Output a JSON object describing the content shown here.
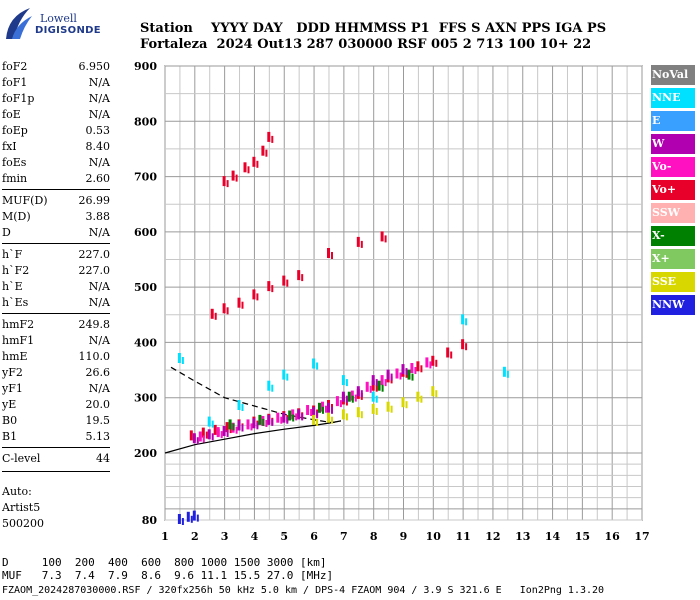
{
  "logo": {
    "line1": "Lowell",
    "line2": "DIGISONDE"
  },
  "header": {
    "row1": "Station    YYYY DAY   DDD HHMMSS P1  FFS S AXN PPS IGA PS",
    "row2": "Fortaleza  2024 Out13 287 030000 RSF 005 2 713 100 10+ 22"
  },
  "params": [
    {
      "k": "foF2",
      "v": "6.950"
    },
    {
      "k": "foF1",
      "v": "N/A"
    },
    {
      "k": "foF1p",
      "v": "N/A"
    },
    {
      "k": "foE",
      "v": "N/A"
    },
    {
      "k": "foEp",
      "v": "0.53"
    },
    {
      "k": "fxI",
      "v": "8.40"
    },
    {
      "k": "foEs",
      "v": "N/A"
    },
    {
      "k": "fmin",
      "v": "2.60"
    },
    {
      "k": "MUF(D)",
      "v": "26.99"
    },
    {
      "k": "M(D)",
      "v": "3.88"
    },
    {
      "k": "D",
      "v": "N/A"
    },
    {
      "k": "h`F",
      "v": "227.0"
    },
    {
      "k": "h`F2",
      "v": "227.0"
    },
    {
      "k": "h`E",
      "v": "N/A"
    },
    {
      "k": "h`Es",
      "v": "N/A"
    },
    {
      "k": "hmF2",
      "v": "249.8"
    },
    {
      "k": "hmF1",
      "v": "N/A"
    },
    {
      "k": "hmE",
      "v": "110.0"
    },
    {
      "k": "yF2",
      "v": "26.6"
    },
    {
      "k": "yF1",
      "v": "N/A"
    },
    {
      "k": "yE",
      "v": "20.0"
    },
    {
      "k": "B0",
      "v": "19.5"
    },
    {
      "k": "B1",
      "v": "5.13"
    },
    {
      "k": "C-level",
      "v": "44"
    }
  ],
  "auto": {
    "l1": "Auto:",
    "l2": "Artist5",
    "l3": "500200"
  },
  "legend": [
    {
      "label": "NoVal",
      "color": "#808080"
    },
    {
      "label": "NNE",
      "color": "#00e0ff"
    },
    {
      "label": "E",
      "color": "#3aa0ff"
    },
    {
      "label": "W",
      "color": "#b000b0"
    },
    {
      "label": "Vo-",
      "color": "#ff10c0"
    },
    {
      "label": "Vo+",
      "color": "#e8002a"
    },
    {
      "label": "SSW",
      "color": "#ffb0b0"
    },
    {
      "label": "X-",
      "color": "#008000"
    },
    {
      "label": "X+",
      "color": "#80c860"
    },
    {
      "label": "SSE",
      "color": "#d8d800"
    },
    {
      "label": "NNW",
      "color": "#2020e0"
    }
  ],
  "footer": {
    "line1": "D     100  200  400  600  800 1000 1500 3000 [km]",
    "line2": "MUF   7.3  7.4  7.9  8.6  9.6 11.1 15.5 27.0 [MHz]"
  },
  "fileline": "FZAOM_2024287030000.RSF / 320fx256h 50 kHz 5.0 km / DPS-4 FZAOM 904 / 3.9 S 321.6 E   Ion2Png 1.3.20",
  "chart_data": {
    "type": "scatter",
    "xlabel": "",
    "ylabel": "",
    "xlim": [
      1,
      17
    ],
    "ylim": [
      80,
      900
    ],
    "xticks": [
      "1",
      "2",
      "3",
      "4",
      "5",
      "6",
      "7",
      "8",
      "9",
      "10",
      "11",
      "12",
      "13",
      "14",
      "15",
      "16",
      "17"
    ],
    "yticks": [
      "80",
      "200",
      "300",
      "400",
      "500",
      "600",
      "700",
      "800",
      "900"
    ],
    "grid": true,
    "series": [
      {
        "name": "Vo+",
        "points": [
          [
            1.9,
            230
          ],
          [
            2.3,
            235
          ],
          [
            2.7,
            240
          ],
          [
            3.1,
            245
          ],
          [
            3.5,
            250
          ],
          [
            4.0,
            255
          ],
          [
            4.5,
            260
          ],
          [
            5.0,
            265
          ],
          [
            5.5,
            270
          ],
          [
            6.0,
            275
          ],
          [
            6.5,
            285
          ],
          [
            7.0,
            295
          ],
          [
            7.5,
            305
          ],
          [
            8.0,
            320
          ],
          [
            8.5,
            335
          ],
          [
            9.0,
            345
          ],
          [
            9.5,
            355
          ],
          [
            10.0,
            365
          ],
          [
            10.5,
            380
          ],
          [
            11.0,
            395
          ]
        ]
      },
      {
        "name": "W",
        "points": [
          [
            2.0,
            225
          ],
          [
            2.5,
            232
          ],
          [
            3.0,
            238
          ],
          [
            3.5,
            248
          ],
          [
            4.0,
            252
          ],
          [
            4.5,
            258
          ],
          [
            5.0,
            262
          ],
          [
            5.5,
            268
          ],
          [
            6.0,
            272
          ],
          [
            6.5,
            280
          ],
          [
            7.0,
            300
          ],
          [
            7.5,
            310
          ],
          [
            8.0,
            330
          ],
          [
            8.5,
            340
          ],
          [
            9.0,
            350
          ]
        ]
      },
      {
        "name": "Vo-",
        "points": [
          [
            2.2,
            228
          ],
          [
            2.8,
            236
          ],
          [
            3.3,
            244
          ],
          [
            3.8,
            250
          ],
          [
            4.3,
            256
          ],
          [
            4.8,
            262
          ],
          [
            5.3,
            268
          ],
          [
            5.8,
            276
          ],
          [
            6.3,
            282
          ],
          [
            6.8,
            292
          ],
          [
            7.3,
            302
          ],
          [
            7.8,
            318
          ],
          [
            8.3,
            330
          ],
          [
            8.8,
            342
          ],
          [
            9.3,
            352
          ],
          [
            9.8,
            362
          ]
        ]
      },
      {
        "name": "X-",
        "points": [
          [
            3.2,
            250
          ],
          [
            4.2,
            258
          ],
          [
            5.2,
            266
          ],
          [
            6.2,
            280
          ],
          [
            7.2,
            300
          ],
          [
            8.2,
            320
          ],
          [
            9.2,
            340
          ]
        ]
      },
      {
        "name": "SSE",
        "points": [
          [
            6.0,
            258
          ],
          [
            6.5,
            262
          ],
          [
            7.0,
            268
          ],
          [
            7.5,
            272
          ],
          [
            8.0,
            278
          ],
          [
            8.5,
            282
          ],
          [
            9.0,
            290
          ],
          [
            9.5,
            300
          ],
          [
            10.0,
            310
          ]
        ]
      },
      {
        "name": "NNE",
        "points": [
          [
            1.5,
            370
          ],
          [
            2.5,
            255
          ],
          [
            3.5,
            285
          ],
          [
            4.5,
            320
          ],
          [
            5.0,
            340
          ],
          [
            6.0,
            360
          ],
          [
            7.0,
            330
          ],
          [
            8.0,
            300
          ],
          [
            11.0,
            440
          ],
          [
            12.4,
            345
          ]
        ]
      },
      {
        "name": "Vo+ 2nd hop",
        "points": [
          [
            2.6,
            450
          ],
          [
            3.0,
            460
          ],
          [
            3.5,
            470
          ],
          [
            4.0,
            485
          ],
          [
            4.5,
            500
          ],
          [
            5.0,
            510
          ],
          [
            5.5,
            520
          ],
          [
            6.5,
            560
          ],
          [
            7.5,
            580
          ],
          [
            8.3,
            590
          ]
        ]
      },
      {
        "name": "Vo+ 3rd hop",
        "points": [
          [
            3.0,
            690
          ],
          [
            3.3,
            700
          ],
          [
            3.7,
            715
          ],
          [
            4.0,
            725
          ],
          [
            4.3,
            745
          ],
          [
            4.5,
            770
          ]
        ]
      },
      {
        "name": "NNW",
        "points": [
          [
            1.5,
            80
          ],
          [
            1.8,
            84
          ],
          [
            2.0,
            86
          ]
        ]
      }
    ],
    "trace": {
      "name": "model",
      "points": [
        [
          1.0,
          200
        ],
        [
          2.0,
          215
        ],
        [
          3.0,
          225
        ],
        [
          4.0,
          235
        ],
        [
          5.0,
          243
        ],
        [
          6.0,
          250
        ],
        [
          6.6,
          255
        ],
        [
          6.9,
          258
        ]
      ]
    },
    "dashed": {
      "name": "profile",
      "points": [
        [
          1.2,
          355
        ],
        [
          2.0,
          330
        ],
        [
          3.0,
          300
        ],
        [
          4.0,
          285
        ],
        [
          5.0,
          270
        ],
        [
          6.0,
          260
        ],
        [
          6.6,
          255
        ],
        [
          6.9,
          258
        ]
      ]
    }
  }
}
